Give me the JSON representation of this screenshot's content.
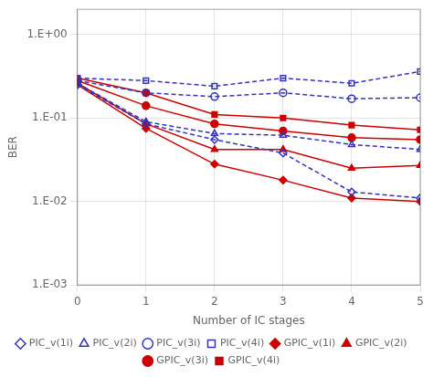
{
  "chart_data": {
    "type": "line",
    "x": [
      0,
      1,
      2,
      3,
      4,
      5
    ],
    "series": [
      {
        "name": "PIC_v(1i)",
        "color": "#3333bb",
        "marker": "diamond",
        "line_style": "dashed",
        "values": [
          0.25,
          0.085,
          0.055,
          0.038,
          0.013,
          0.011
        ]
      },
      {
        "name": "PIC_v(2i)",
        "color": "#3333bb",
        "marker": "triangle",
        "line_style": "dashed",
        "values": [
          0.26,
          0.09,
          0.065,
          0.062,
          0.048,
          0.042
        ]
      },
      {
        "name": "PIC_v(3i)",
        "color": "#3333bb",
        "marker": "circle",
        "line_style": "dashed",
        "values": [
          0.28,
          0.2,
          0.18,
          0.2,
          0.17,
          0.175
        ]
      },
      {
        "name": "PIC_v(4i)",
        "color": "#3333bb",
        "marker": "square",
        "line_style": "dashed",
        "values": [
          0.3,
          0.28,
          0.24,
          0.3,
          0.26,
          0.36
        ]
      },
      {
        "name": "GPIC_v(1i)",
        "color": "#cc0000",
        "marker": "diamond",
        "line_style": "solid",
        "values": [
          0.25,
          0.075,
          0.028,
          0.018,
          0.011,
          0.01
        ]
      },
      {
        "name": "GPIC_v(2i)",
        "color": "#cc0000",
        "marker": "triangle",
        "line_style": "solid",
        "values": [
          0.26,
          0.085,
          0.042,
          0.042,
          0.025,
          0.027
        ]
      },
      {
        "name": "GPIC_v(3i)",
        "color": "#cc0000",
        "marker": "circle",
        "line_style": "solid",
        "values": [
          0.28,
          0.14,
          0.085,
          0.07,
          0.058,
          0.055
        ]
      },
      {
        "name": "GPIC_v(4i)",
        "color": "#cc0000",
        "marker": "square",
        "line_style": "solid",
        "values": [
          0.3,
          0.2,
          0.11,
          0.1,
          0.082,
          0.072
        ]
      }
    ],
    "xlabel": "Number of IC stages",
    "ylabel": "BER",
    "xlim": [
      0,
      5
    ],
    "xticks": [
      0,
      1,
      2,
      3,
      4,
      5
    ],
    "ylim": [
      0.001,
      2.0
    ],
    "yticks": [
      {
        "value": 0.001,
        "label": "1.E-03"
      },
      {
        "value": 0.01,
        "label": "1.E-02"
      },
      {
        "value": 0.1,
        "label": "1.E-01"
      },
      {
        "value": 1,
        "label": "1.E+00"
      }
    ],
    "log": "y",
    "grid": true,
    "legend": "bottom"
  }
}
